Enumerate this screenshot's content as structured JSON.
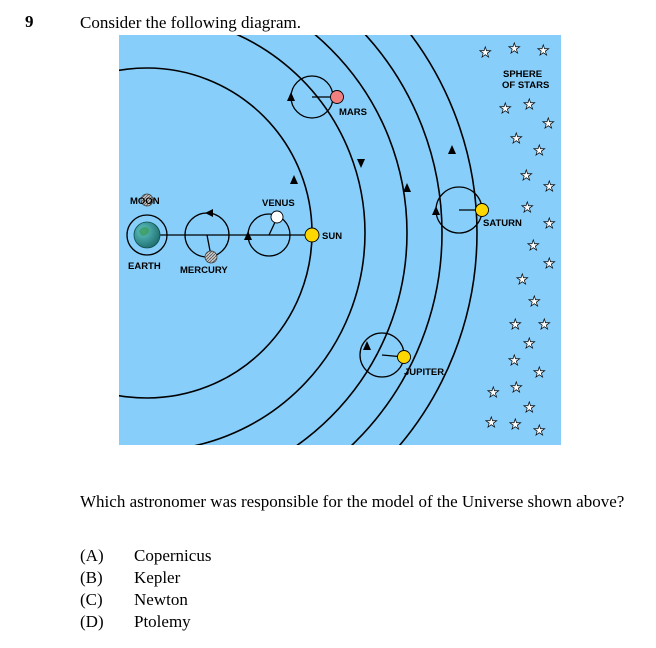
{
  "question": {
    "number": "9",
    "prompt": "Consider the following diagram.",
    "text": "Which astronomer was responsible for the model of the Universe shown above?",
    "options": [
      {
        "letter": "(A)",
        "text": "Copernicus"
      },
      {
        "letter": "(B)",
        "text": "Kepler"
      },
      {
        "letter": "(C)",
        "text": "Newton"
      },
      {
        "letter": "(D)",
        "text": "Ptolemy"
      }
    ]
  },
  "diagram": {
    "labels": {
      "sphere_line1": "SPHERE",
      "sphere_line2": "OF STARS",
      "mars": "MARS",
      "moon": "MOON",
      "venus": "VENUS",
      "sun": "SUN",
      "earth": "EARTH",
      "mercury": "MERCURY",
      "saturn": "SATURN",
      "jupiter": "JUPITER"
    },
    "colors": {
      "background": "#87CEFA",
      "sun": "#FFD700",
      "mars": "#F08080",
      "venus": "#FFFFFF",
      "earth": "#2E8B8B",
      "moon": "#B0B0B0",
      "jupiter": "#FFD700",
      "saturn": "#FFD700"
    }
  }
}
